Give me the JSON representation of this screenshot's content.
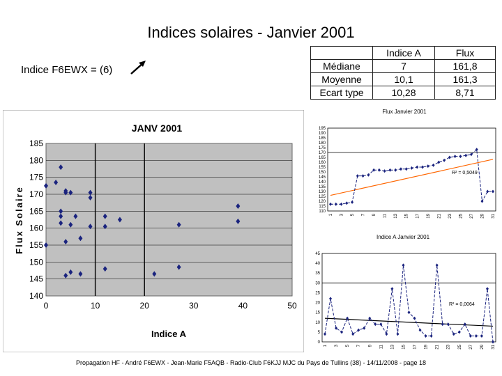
{
  "page": {
    "title": "Indices solaires -  Janvier 2001",
    "subtitle": "Indice F6EWX = (6)",
    "footer": "Propagation HF - André F6EWX - Jean-Marie F5AQB - Radio-Club F6KJJ MJC du Pays de Tullins (38) - 14/11/2008  -  page 18"
  },
  "stats_table": {
    "headers": [
      "",
      "Indice A",
      "Flux"
    ],
    "rows": [
      [
        "Médiane",
        "7",
        "161,8"
      ],
      [
        "Moyenne",
        "10,1",
        "161,3"
      ],
      [
        "Ecart type",
        "10,28",
        "8,71"
      ]
    ]
  },
  "chart_data": [
    {
      "type": "scatter",
      "title": "JANV 2001",
      "xlabel": "Indice A",
      "ylabel": "Flux Solaire",
      "xlim": [
        0,
        50
      ],
      "ylim": [
        140,
        185
      ],
      "xticks": [
        "0",
        "10",
        "20",
        "30",
        "40",
        "50"
      ],
      "yticks": [
        "140",
        "145",
        "150",
        "155",
        "160",
        "165",
        "170",
        "175",
        "180",
        "185"
      ],
      "vertical_lines_x": [
        10,
        20
      ],
      "color": "#1a237e",
      "background": "#c0c0c0",
      "points": [
        [
          0,
          172.5
        ],
        [
          0,
          155
        ],
        [
          2,
          173.5
        ],
        [
          3,
          178
        ],
        [
          3,
          165
        ],
        [
          3,
          163.5
        ],
        [
          3,
          161.5
        ],
        [
          4,
          171
        ],
        [
          4,
          170.5
        ],
        [
          4,
          156
        ],
        [
          4,
          146
        ],
        [
          5,
          170.5
        ],
        [
          5,
          161
        ],
        [
          5,
          147
        ],
        [
          6,
          163.5
        ],
        [
          7,
          157
        ],
        [
          7,
          146.5
        ],
        [
          9,
          170.5
        ],
        [
          9,
          169
        ],
        [
          9,
          160.5
        ],
        [
          12,
          163.5
        ],
        [
          12,
          160.5
        ],
        [
          12,
          148
        ],
        [
          15,
          162.5
        ],
        [
          22,
          146.5
        ],
        [
          27,
          161
        ],
        [
          27,
          148.5
        ],
        [
          39,
          166.5
        ],
        [
          39,
          162
        ]
      ]
    },
    {
      "type": "line",
      "title": "Flux Janvier 2001",
      "ylim": [
        110,
        195
      ],
      "yticks": [
        "110",
        "115",
        "120",
        "125",
        "130",
        "135",
        "140",
        "145",
        "150",
        "155",
        "160",
        "165",
        "170",
        "175",
        "180",
        "185",
        "190",
        "195"
      ],
      "x": [
        1,
        2,
        3,
        4,
        5,
        6,
        7,
        8,
        9,
        10,
        11,
        12,
        13,
        14,
        15,
        16,
        17,
        18,
        19,
        20,
        21,
        22,
        23,
        24,
        25,
        26,
        27,
        28,
        29,
        30,
        31
      ],
      "xtick_labels": [
        "1",
        "3",
        "5",
        "7",
        "9",
        "11",
        "13",
        "15",
        "17",
        "19",
        "21",
        "23",
        "25",
        "27",
        "29",
        "31"
      ],
      "values": [
        117,
        117,
        117,
        118,
        119,
        146,
        146,
        147,
        152,
        152,
        151,
        152,
        152,
        153,
        153,
        154,
        155,
        155,
        156,
        157,
        160,
        162,
        165,
        166,
        166,
        167,
        168,
        173,
        120,
        130,
        130
      ],
      "hline": 170,
      "trendline": {
        "start": 126,
        "end": 163,
        "color": "#ff6600"
      },
      "r2_label": "R² = 0,5049",
      "color": "#1a237e"
    },
    {
      "type": "line",
      "title": "Indice A Janvier 2001",
      "ylim": [
        0,
        45
      ],
      "yticks": [
        "0",
        "5",
        "10",
        "15",
        "20",
        "25",
        "30",
        "35",
        "40",
        "45"
      ],
      "x": [
        1,
        2,
        3,
        4,
        5,
        6,
        7,
        8,
        9,
        10,
        11,
        12,
        13,
        14,
        15,
        16,
        17,
        18,
        19,
        20,
        21,
        22,
        23,
        24,
        25,
        26,
        27,
        28,
        29,
        30,
        31
      ],
      "xtick_labels": [
        "1",
        "3",
        "5",
        "7",
        "9",
        "11",
        "13",
        "15",
        "17",
        "19",
        "21",
        "23",
        "25",
        "27",
        "29",
        "31"
      ],
      "values": [
        4,
        22,
        7,
        5,
        12,
        4,
        6,
        7,
        12,
        9,
        9,
        4,
        27,
        4,
        39,
        15,
        12,
        6,
        3,
        3,
        39,
        9,
        9,
        4,
        5,
        9,
        3,
        3,
        3,
        27,
        0
      ],
      "hline": 30,
      "trendline": {
        "start": 12,
        "end": 8,
        "color": "#000000"
      },
      "r2_label": "R² = 0,0064",
      "color": "#1a237e"
    }
  ]
}
